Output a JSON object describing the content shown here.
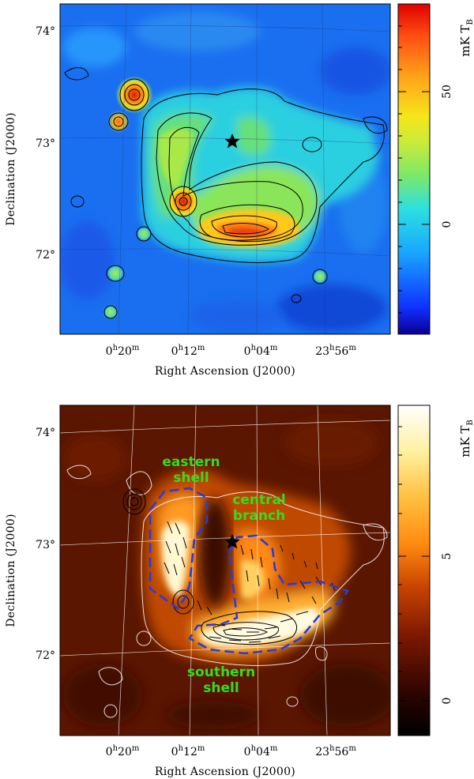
{
  "panels": [
    {
      "ylabel": "Declination (J2000)",
      "xlabel": "Right Ascension (J2000)",
      "x_ticks": [
        {
          "h": "0",
          "m": "20"
        },
        {
          "h": "0",
          "m": "12"
        },
        {
          "h": "0",
          "m": "04"
        },
        {
          "h": "23",
          "m": "56"
        }
      ],
      "y_ticks": [
        "74°",
        "73°",
        "72°"
      ],
      "colorbar": {
        "unit": "mK T",
        "sub": "B",
        "ticks": [
          "50",
          "0"
        ],
        "scale": "rainbow",
        "range": [
          -40,
          80
        ]
      }
    },
    {
      "ylabel": "Declination (J2000)",
      "xlabel": "Right Ascension (J2000)",
      "x_ticks": [
        {
          "h": "0",
          "m": "20"
        },
        {
          "h": "0",
          "m": "12"
        },
        {
          "h": "0",
          "m": "04"
        },
        {
          "h": "23",
          "m": "56"
        }
      ],
      "y_ticks": [
        "74°",
        "73°",
        "72°"
      ],
      "colorbar": {
        "unit": "mK T",
        "sub": "B",
        "ticks": [
          "5",
          "0"
        ],
        "scale": "heat",
        "range": [
          -1.5,
          10
        ]
      },
      "annotations": [
        {
          "lines": [
            "eastern",
            "shell"
          ]
        },
        {
          "lines": [
            "central",
            "branch"
          ]
        },
        {
          "lines": [
            "southern",
            "shell"
          ]
        }
      ]
    }
  ],
  "chart_data": [
    {
      "type": "heatmap",
      "title": "",
      "xlabel": "Right Ascension (J2000)",
      "ylabel": "Declination (J2000)",
      "x_tick_labels": [
        "0h20m",
        "0h12m",
        "0h04m",
        "23h56m"
      ],
      "y_tick_labels": [
        "74°",
        "73°",
        "72°"
      ],
      "ylim_deg": [
        71.3,
        74.3
      ],
      "colorbar_label": "mK T_B",
      "colorbar_ticks": [
        50,
        0
      ],
      "colorbar_range": [
        -40,
        80
      ],
      "features": [
        {
          "name": "compact source",
          "ra": "0h16m",
          "dec": 73.4,
          "peak_mK": 75
        },
        {
          "name": "compact source",
          "ra": "0h17m",
          "dec": 73.2,
          "peak_mK": 30
        },
        {
          "name": "compact source",
          "ra": "0h12m",
          "dec": 72.45,
          "peak_mK": 55
        },
        {
          "name": "southern shell maximum",
          "ra": "0h05m",
          "dec": 72.15,
          "peak_mK": 30
        }
      ],
      "marker": {
        "symbol": "star",
        "ra": "0h08m",
        "dec": 73.0
      }
    },
    {
      "type": "heatmap",
      "title": "",
      "xlabel": "Right Ascension (J2000)",
      "ylabel": "Declination (J2000)",
      "x_tick_labels": [
        "0h20m",
        "0h12m",
        "0h04m",
        "23h56m"
      ],
      "y_tick_labels": [
        "74°",
        "73°",
        "72°"
      ],
      "ylim_deg": [
        71.3,
        74.3
      ],
      "colorbar_label": "mK T_B",
      "colorbar_ticks": [
        5,
        0
      ],
      "colorbar_range": [
        -1.5,
        10
      ],
      "annotations": [
        "eastern shell",
        "central branch",
        "southern shell"
      ],
      "marker": {
        "symbol": "star",
        "ra": "0h08m",
        "dec": 73.0
      },
      "overlays": [
        "polarization vectors",
        "dashed region outlines",
        "total-intensity contours"
      ]
    }
  ]
}
